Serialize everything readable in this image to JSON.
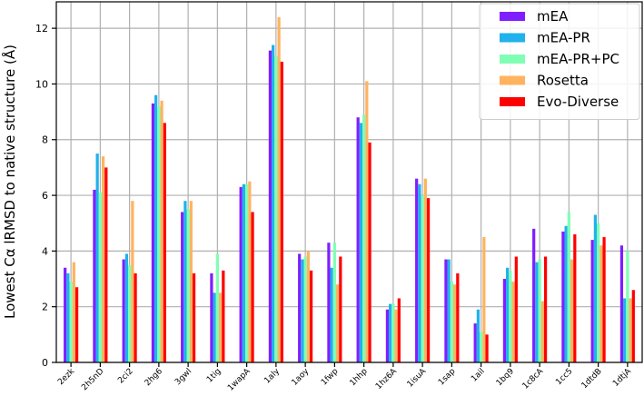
{
  "chart_data": {
    "type": "grouped_bar",
    "ylabel": "Lowest Cα lRMSD to native structure (Å)",
    "categories": [
      "2ezk",
      "2h5nD",
      "2ci2",
      "2hg6",
      "3gwl",
      "1tig",
      "1wapA",
      "1aly",
      "1aoy",
      "1fwp",
      "1hhp",
      "1hz6A",
      "1isuA",
      "1sap",
      "1ail",
      "1bq9",
      "1c8cA",
      "1cc5",
      "1dtdB",
      "1dtjA"
    ],
    "series": [
      {
        "name": "mEA",
        "color": "#7f1fff",
        "values": [
          3.4,
          6.2,
          3.7,
          9.3,
          5.4,
          3.2,
          6.3,
          11.2,
          3.9,
          4.3,
          8.8,
          1.9,
          6.6,
          3.7,
          1.4,
          3.0,
          4.8,
          4.7,
          4.4,
          4.2
        ]
      },
      {
        "name": "mEA-PR",
        "color": "#1fb2ec",
        "values": [
          3.2,
          7.5,
          3.9,
          9.6,
          5.8,
          2.5,
          6.4,
          11.4,
          3.7,
          3.4,
          8.6,
          2.1,
          6.4,
          3.7,
          1.9,
          3.4,
          3.6,
          4.9,
          5.3,
          2.3
        ]
      },
      {
        "name": "mEA-PR+PC",
        "color": "#80ffb4",
        "values": [
          2.9,
          6.1,
          3.5,
          9.2,
          5.5,
          3.9,
          6.4,
          11.0,
          3.8,
          4.3,
          8.9,
          2.1,
          6.0,
          2.9,
          1.1,
          3.3,
          3.7,
          5.4,
          5.0,
          4.0
        ]
      },
      {
        "name": "Rosetta",
        "color": "#ffb360",
        "values": [
          3.6,
          7.4,
          5.8,
          9.4,
          5.8,
          2.5,
          6.5,
          12.4,
          4.0,
          2.8,
          10.1,
          1.9,
          6.6,
          2.8,
          4.5,
          2.9,
          2.2,
          3.7,
          4.2,
          2.3
        ]
      },
      {
        "name": "Evo-Diverse",
        "color": "#ff0000",
        "values": [
          2.7,
          7.0,
          3.2,
          8.6,
          3.2,
          3.3,
          5.4,
          10.8,
          3.3,
          3.8,
          7.9,
          2.3,
          5.9,
          3.2,
          1.0,
          3.8,
          3.8,
          4.6,
          4.5,
          2.6
        ]
      }
    ],
    "ylim": [
      0,
      12.95
    ],
    "yticks": [
      0,
      2,
      4,
      6,
      8,
      10,
      12
    ],
    "grid": true,
    "legend": "upper right"
  }
}
